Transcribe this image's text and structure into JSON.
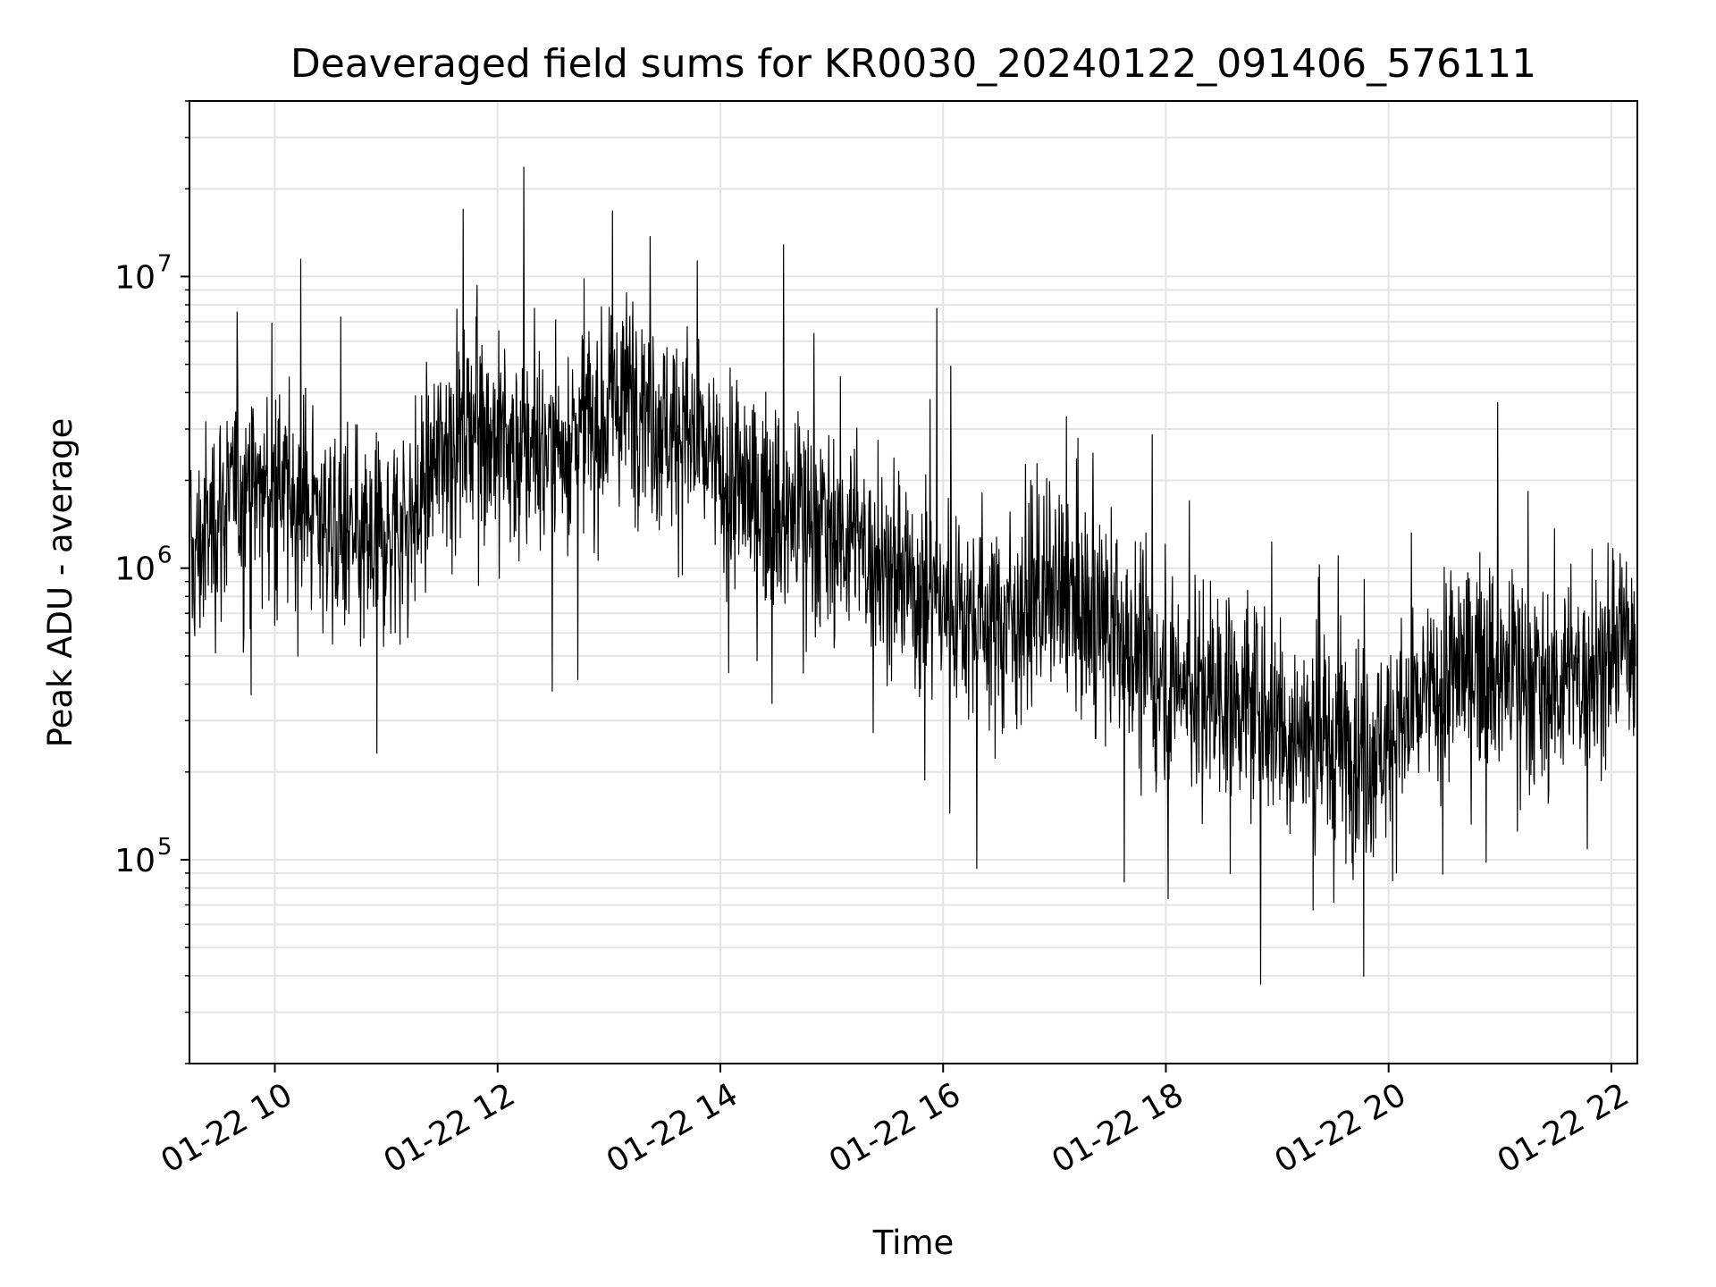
{
  "chart_data": {
    "type": "line",
    "title": "Deaveraged field sums for KR0030_20240122_091406_576111",
    "xlabel": "Time",
    "ylabel": "Peak ADU - average",
    "yscale": "log",
    "grid": true,
    "grid_minor": true,
    "xlim": [
      "2024-01-22 09:14",
      "2024-01-22 22:14"
    ],
    "ylim": [
      20000,
      40000000
    ],
    "x_ticks": [
      {
        "value": "2024-01-22 10:00",
        "label": "01-22 10"
      },
      {
        "value": "2024-01-22 12:00",
        "label": "01-22 12"
      },
      {
        "value": "2024-01-22 14:00",
        "label": "01-22 14"
      },
      {
        "value": "2024-01-22 16:00",
        "label": "01-22 16"
      },
      {
        "value": "2024-01-22 18:00",
        "label": "01-22 18"
      },
      {
        "value": "2024-01-22 20:00",
        "label": "01-22 20"
      },
      {
        "value": "2024-01-22 22:00",
        "label": "01-22 22"
      }
    ],
    "y_ticks": [
      {
        "value": 100000,
        "base": "10",
        "exp": "5"
      },
      {
        "value": 1000000,
        "base": "10",
        "exp": "6"
      },
      {
        "value": 10000000,
        "base": "10",
        "exp": "7"
      }
    ],
    "series_color": "#000000",
    "series": [
      {
        "x": [
          "09:15",
          "09:30",
          "09:45",
          "10:00",
          "10:15",
          "10:30",
          "10:45",
          "11:00",
          "11:15",
          "11:30",
          "11:45",
          "12:00",
          "12:15",
          "12:30",
          "12:45",
          "13:00",
          "13:15",
          "13:30",
          "13:45",
          "14:00",
          "14:15",
          "14:30",
          "14:45",
          "15:00",
          "15:15",
          "15:30",
          "15:45",
          "16:00",
          "16:15",
          "16:30",
          "16:45",
          "17:00",
          "17:15",
          "17:30",
          "17:45",
          "18:00",
          "18:15",
          "18:30",
          "18:45",
          "19:00",
          "19:15",
          "19:30",
          "19:45",
          "20:00",
          "20:15",
          "20:30",
          "20:45",
          "21:00",
          "21:15",
          "21:30",
          "21:45",
          "22:00",
          "22:10"
        ],
        "y": [
          1000000,
          1600000,
          1900000,
          1800000,
          1700000,
          1400000,
          1100000,
          1300000,
          1500000,
          2600000,
          3300000,
          2700000,
          2500000,
          2600000,
          3100000,
          3300000,
          4200000,
          3100000,
          2800000,
          2000000,
          1800000,
          1600000,
          1500000,
          1400000,
          1200000,
          1000000,
          850000,
          800000,
          700000,
          650000,
          750000,
          800000,
          700000,
          600000,
          500000,
          420000,
          400000,
          380000,
          350000,
          300000,
          260000,
          250000,
          240000,
          260000,
          320000,
          400000,
          480000,
          450000,
          420000,
          400000,
          430000,
          500000,
          620000
        ]
      }
    ]
  }
}
